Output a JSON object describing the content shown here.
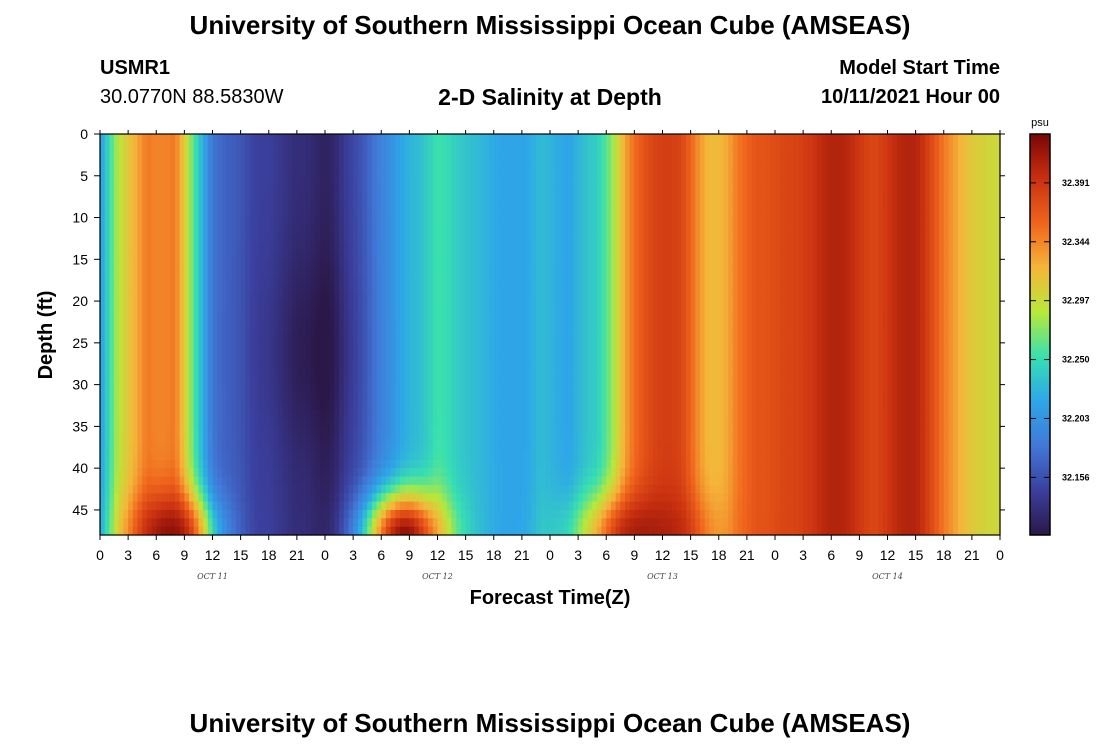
{
  "page": {
    "title": "University of Southern Mississippi Ocean Cube (AMSEAS)",
    "title_repeat": "University of Southern Mississippi Ocean Cube (AMSEAS)",
    "station_id": "USMR1",
    "coordinates": "30.0770N  88.5830W",
    "subtitle": "2-D Salinity at Depth",
    "model_start_label": "Model Start Time",
    "model_start_value": "10/11/2021 Hour 00"
  },
  "chart_data": {
    "type": "heatmap",
    "title": "2-D Salinity at Depth",
    "xlabel": "Forecast Time(Z)",
    "ylabel": "Depth (ft)",
    "x_range_hours": [
      0,
      96
    ],
    "x_tick_step_hours": 3,
    "x_tick_labels": [
      "0",
      "3",
      "6",
      "9",
      "12",
      "15",
      "18",
      "21",
      "0",
      "3",
      "6",
      "9",
      "12",
      "15",
      "18",
      "21",
      "0",
      "3",
      "6",
      "9",
      "12",
      "15",
      "18",
      "21",
      "0",
      "3",
      "6",
      "9",
      "12",
      "15",
      "18",
      "21",
      "0"
    ],
    "day_labels": [
      "OCT 11",
      "OCT 12",
      "OCT 13",
      "OCT 14"
    ],
    "y_range": [
      0,
      48
    ],
    "y_ticks": [
      0,
      5,
      10,
      15,
      20,
      25,
      30,
      35,
      40,
      45
    ],
    "colorbar": {
      "unit": "psu",
      "min": 32.11,
      "max": 32.43,
      "tick_values": [
        32.156,
        32.203,
        32.25,
        32.297,
        32.344,
        32.391
      ],
      "tick_labels": [
        "32.156",
        "32.203",
        "32.250",
        "32.297",
        "32.344",
        "32.391"
      ],
      "colors": [
        "#2b1748",
        "#3b3f9e",
        "#4178d8",
        "#2ea6e8",
        "#38e0b0",
        "#b8e83a",
        "#f5b53a",
        "#f0641c",
        "#c93010",
        "#7a0606"
      ]
    },
    "time_profile": {
      "hours": [
        0,
        1,
        2,
        3,
        4,
        5,
        6,
        7,
        8,
        9,
        10,
        11,
        12,
        13,
        14,
        15,
        16,
        17,
        18,
        19,
        20,
        21,
        22,
        23,
        24,
        25,
        26,
        27,
        28,
        29,
        30,
        31,
        32,
        33,
        34,
        35,
        36,
        37,
        38,
        39,
        40,
        41,
        42,
        43,
        44,
        45,
        46,
        47,
        48,
        49,
        50,
        51,
        52,
        53,
        54,
        55,
        56,
        57,
        58,
        59,
        60,
        61,
        62,
        63,
        64,
        65,
        66,
        67,
        68,
        69,
        70,
        71,
        72,
        73,
        74,
        75,
        76,
        77,
        78,
        79,
        80,
        81,
        82,
        83,
        84,
        85,
        86,
        87,
        88,
        89,
        90,
        91,
        92,
        93,
        94,
        95,
        96
      ],
      "upper_salinity": [
        32.21,
        32.25,
        32.29,
        32.31,
        32.33,
        32.35,
        32.345,
        32.345,
        32.35,
        32.31,
        32.26,
        32.22,
        32.18,
        32.17,
        32.165,
        32.16,
        32.15,
        32.145,
        32.145,
        32.14,
        32.135,
        32.13,
        32.13,
        32.125,
        32.12,
        32.125,
        32.14,
        32.15,
        32.16,
        32.175,
        32.19,
        32.2,
        32.215,
        32.225,
        32.23,
        32.24,
        32.255,
        32.25,
        32.24,
        32.235,
        32.23,
        32.225,
        32.22,
        32.215,
        32.215,
        32.215,
        32.22,
        32.23,
        32.225,
        32.22,
        32.215,
        32.225,
        32.235,
        32.24,
        32.26,
        32.29,
        32.33,
        32.355,
        32.37,
        32.38,
        32.385,
        32.385,
        32.38,
        32.36,
        32.335,
        32.32,
        32.32,
        32.33,
        32.35,
        32.36,
        32.37,
        32.37,
        32.375,
        32.38,
        32.38,
        32.385,
        32.39,
        32.4,
        32.405,
        32.405,
        32.4,
        32.39,
        32.38,
        32.38,
        32.39,
        32.4,
        32.405,
        32.405,
        32.39,
        32.37,
        32.35,
        32.335,
        32.32,
        32.31,
        32.305,
        32.3,
        32.3
      ],
      "bottom_event_hours": [
        7.5,
        32.5,
        58
      ],
      "bottom_event_peak_salinity": [
        32.42,
        32.42,
        32.41
      ]
    }
  }
}
